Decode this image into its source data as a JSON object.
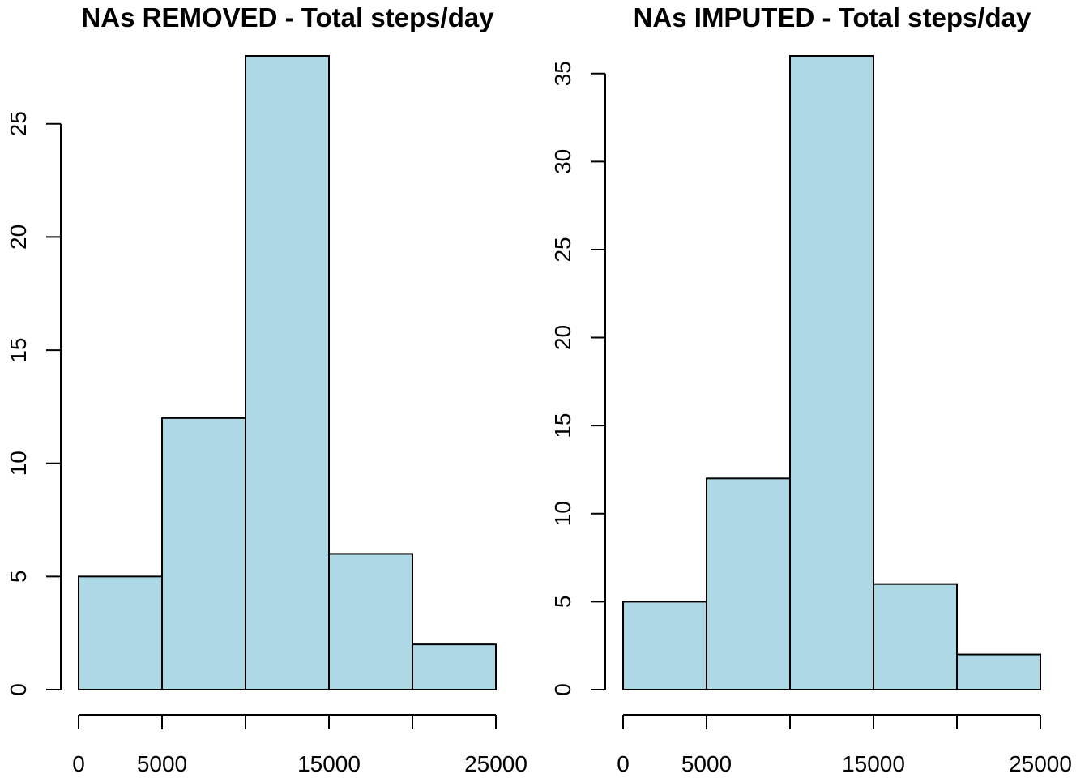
{
  "chart_data": [
    {
      "type": "bar",
      "title": "NAs REMOVED - Total steps/day",
      "xlabel": "",
      "ylabel": "",
      "bin_edges": [
        0,
        5000,
        10000,
        15000,
        20000,
        25000
      ],
      "values": [
        5,
        12,
        28,
        6,
        2
      ],
      "x_ticks": [
        0,
        5000,
        10000,
        15000,
        20000,
        25000
      ],
      "x_tick_labels": [
        "0",
        "5000",
        "",
        "15000",
        "",
        "25000"
      ],
      "y_ticks": [
        0,
        5,
        10,
        15,
        20,
        25
      ],
      "y_tick_labels": [
        "0",
        "5",
        "10",
        "15",
        "20",
        "25"
      ],
      "ylim": [
        0,
        28
      ],
      "bar_color": "#add8e6",
      "grid": false
    },
    {
      "type": "bar",
      "title": "NAs IMPUTED - Total steps/day",
      "xlabel": "",
      "ylabel": "",
      "bin_edges": [
        0,
        5000,
        10000,
        15000,
        20000,
        25000
      ],
      "values": [
        5,
        12,
        36,
        6,
        2
      ],
      "x_ticks": [
        0,
        5000,
        10000,
        15000,
        20000,
        25000
      ],
      "x_tick_labels": [
        "0",
        "5000",
        "",
        "15000",
        "",
        "25000"
      ],
      "y_ticks": [
        0,
        5,
        10,
        15,
        20,
        25,
        30,
        35
      ],
      "y_tick_labels": [
        "0",
        "5",
        "10",
        "15",
        "20",
        "25",
        "30",
        "35"
      ],
      "ylim": [
        0,
        36
      ],
      "bar_color": "#add8e6",
      "grid": false
    }
  ]
}
